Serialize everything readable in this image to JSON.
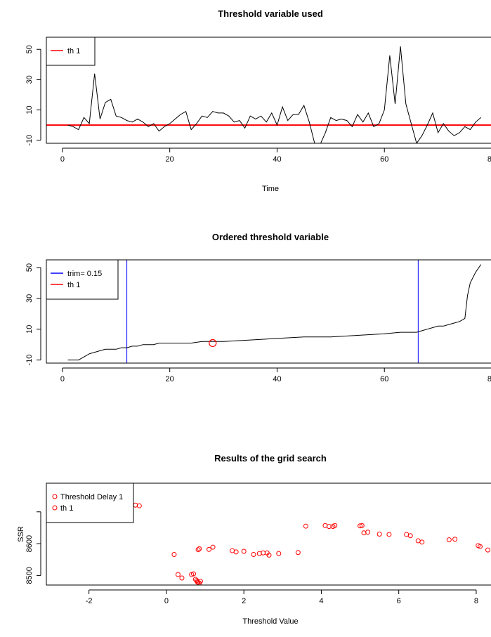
{
  "chart_data": [
    {
      "type": "line",
      "title": "Threshold variable used",
      "xlabel": "Time",
      "ylabel": "",
      "xlim": [
        -3,
        80
      ],
      "ylim": [
        -12,
        58
      ],
      "x_ticks": [
        0,
        20,
        40,
        60,
        80
      ],
      "y_ticks": [
        -10,
        10,
        30,
        50
      ],
      "legend": {
        "position": "top-left",
        "entries": [
          {
            "label": "th 1",
            "color": "#ff0000",
            "style": "line"
          }
        ]
      },
      "hlines": [
        {
          "y": 0,
          "color": "#ff0000",
          "name": "th 1"
        }
      ],
      "series": [
        {
          "color": "#000000",
          "x": [
            1,
            2,
            3,
            4,
            5,
            6,
            7,
            8,
            9,
            10,
            11,
            12,
            13,
            14,
            15,
            16,
            17,
            18,
            19,
            20,
            21,
            22,
            23,
            24,
            25,
            26,
            27,
            28,
            29,
            30,
            31,
            32,
            33,
            34,
            35,
            36,
            37,
            38,
            39,
            40,
            41,
            42,
            43,
            44,
            45,
            46,
            47,
            48,
            49,
            50,
            51,
            52,
            53,
            54,
            55,
            56,
            57,
            58,
            59,
            60,
            61,
            62,
            63,
            64,
            65,
            66,
            67,
            68,
            69,
            70,
            71,
            72,
            73,
            74,
            75,
            76,
            77,
            78
          ],
          "y": [
            0,
            -1,
            -3,
            5,
            1,
            34,
            4,
            15,
            17,
            6,
            5,
            3,
            2,
            4,
            2,
            -1,
            1,
            -4,
            -1,
            1,
            4,
            7,
            9,
            -3,
            1,
            6,
            5,
            9,
            8,
            8,
            6,
            2,
            3,
            -2,
            6,
            4,
            6,
            2,
            8,
            0,
            12,
            3,
            7,
            7,
            13,
            2,
            -12,
            -13,
            -5,
            5,
            3,
            4,
            3,
            -1,
            7,
            2,
            8,
            -1,
            1,
            10,
            46,
            14,
            52,
            14,
            1,
            -12,
            -7,
            0,
            8,
            -5,
            1,
            -4,
            -7,
            -5,
            -1,
            -3,
            2,
            5
          ]
        }
      ]
    },
    {
      "type": "line",
      "title": "Ordered threshold variable",
      "xlabel": "",
      "ylabel": "",
      "xlim": [
        -3,
        80
      ],
      "ylim": [
        -12,
        55
      ],
      "x_ticks": [
        0,
        20,
        40,
        60,
        80
      ],
      "y_ticks": [
        -10,
        10,
        30,
        50
      ],
      "legend": {
        "position": "top-left",
        "entries": [
          {
            "label": "trim= 0.15",
            "color": "#0000ff",
            "style": "line"
          },
          {
            "label": "th 1",
            "color": "#ff0000",
            "style": "line"
          }
        ]
      },
      "vlines": [
        {
          "x": 12,
          "color": "#0000ff"
        },
        {
          "x": 66.3,
          "color": "#0000ff"
        }
      ],
      "markers": [
        {
          "x": 28,
          "y": 1,
          "color": "#ff0000",
          "shape": "circle"
        }
      ],
      "series": [
        {
          "color": "#000000",
          "x": [
            1,
            3,
            4,
            5,
            6,
            7,
            8,
            9,
            10,
            11,
            12,
            13,
            14,
            15,
            16,
            17,
            18,
            19,
            20,
            22,
            24,
            26,
            28,
            30,
            35,
            40,
            45,
            50,
            55,
            60,
            63,
            65,
            66,
            67,
            68,
            69,
            70,
            71,
            72,
            73,
            74,
            75,
            75.5,
            76,
            77,
            78
          ],
          "y": [
            -10,
            -10,
            -8,
            -6,
            -5,
            -4,
            -3,
            -3,
            -3,
            -2,
            -2,
            -1,
            -1,
            0,
            0,
            0,
            1,
            1,
            1,
            1,
            1,
            2,
            2,
            2,
            3,
            4,
            5,
            5,
            6,
            7,
            8,
            8,
            8,
            9,
            10,
            11,
            12,
            12,
            13,
            14,
            15,
            17,
            32,
            40,
            47,
            52
          ]
        }
      ]
    },
    {
      "type": "scatter",
      "title": "Results of the grid search",
      "xlabel": "Threshold Value",
      "ylabel": "SSR",
      "xlim": [
        -3.1,
        8.4
      ],
      "ylim": [
        8470,
        8790
      ],
      "x_ticks": [
        -2,
        0,
        2,
        4,
        6,
        8
      ],
      "y_ticks": [
        8500,
        8600
      ],
      "y_minor_ticks": [
        8700
      ],
      "legend": {
        "position": "top-left",
        "entries": [
          {
            "label": "Threshold Delay 1",
            "color": "#ff0000",
            "style": "circle"
          },
          {
            "label": "th 1",
            "color": "#ff0000",
            "style": "circle"
          }
        ]
      },
      "series": [
        {
          "color": "#ff0000",
          "points": [
            [
              -0.9,
              8721
            ],
            [
              -0.8,
              8721
            ],
            [
              -0.7,
              8719
            ],
            [
              0.2,
              8566
            ],
            [
              0.3,
              8503
            ],
            [
              0.4,
              8492
            ],
            [
              0.65,
              8503
            ],
            [
              0.7,
              8505
            ],
            [
              0.75,
              8488
            ],
            [
              0.78,
              8484
            ],
            [
              0.8,
              8480
            ],
            [
              0.82,
              8478
            ],
            [
              0.85,
              8476
            ],
            [
              0.88,
              8482
            ],
            [
              0.82,
              8581
            ],
            [
              0.85,
              8584
            ],
            [
              1.1,
              8582
            ],
            [
              1.2,
              8589
            ],
            [
              1.7,
              8578
            ],
            [
              1.8,
              8574
            ],
            [
              2.0,
              8576
            ],
            [
              2.25,
              8566
            ],
            [
              2.4,
              8569
            ],
            [
              2.5,
              8571
            ],
            [
              2.6,
              8571
            ],
            [
              2.65,
              8564
            ],
            [
              2.9,
              8569
            ],
            [
              3.4,
              8572
            ],
            [
              3.6,
              8655
            ],
            [
              4.1,
              8657
            ],
            [
              4.2,
              8654
            ],
            [
              4.3,
              8654
            ],
            [
              4.35,
              8657
            ],
            [
              5.0,
              8656
            ],
            [
              5.05,
              8657
            ],
            [
              5.1,
              8634
            ],
            [
              5.2,
              8636
            ],
            [
              5.5,
              8630
            ],
            [
              5.75,
              8629
            ],
            [
              6.2,
              8629
            ],
            [
              6.3,
              8625
            ],
            [
              6.5,
              8609
            ],
            [
              6.6,
              8605
            ],
            [
              7.3,
              8612
            ],
            [
              7.45,
              8614
            ],
            [
              8.05,
              8594
            ],
            [
              8.1,
              8591
            ],
            [
              8.3,
              8580
            ]
          ]
        }
      ]
    }
  ]
}
